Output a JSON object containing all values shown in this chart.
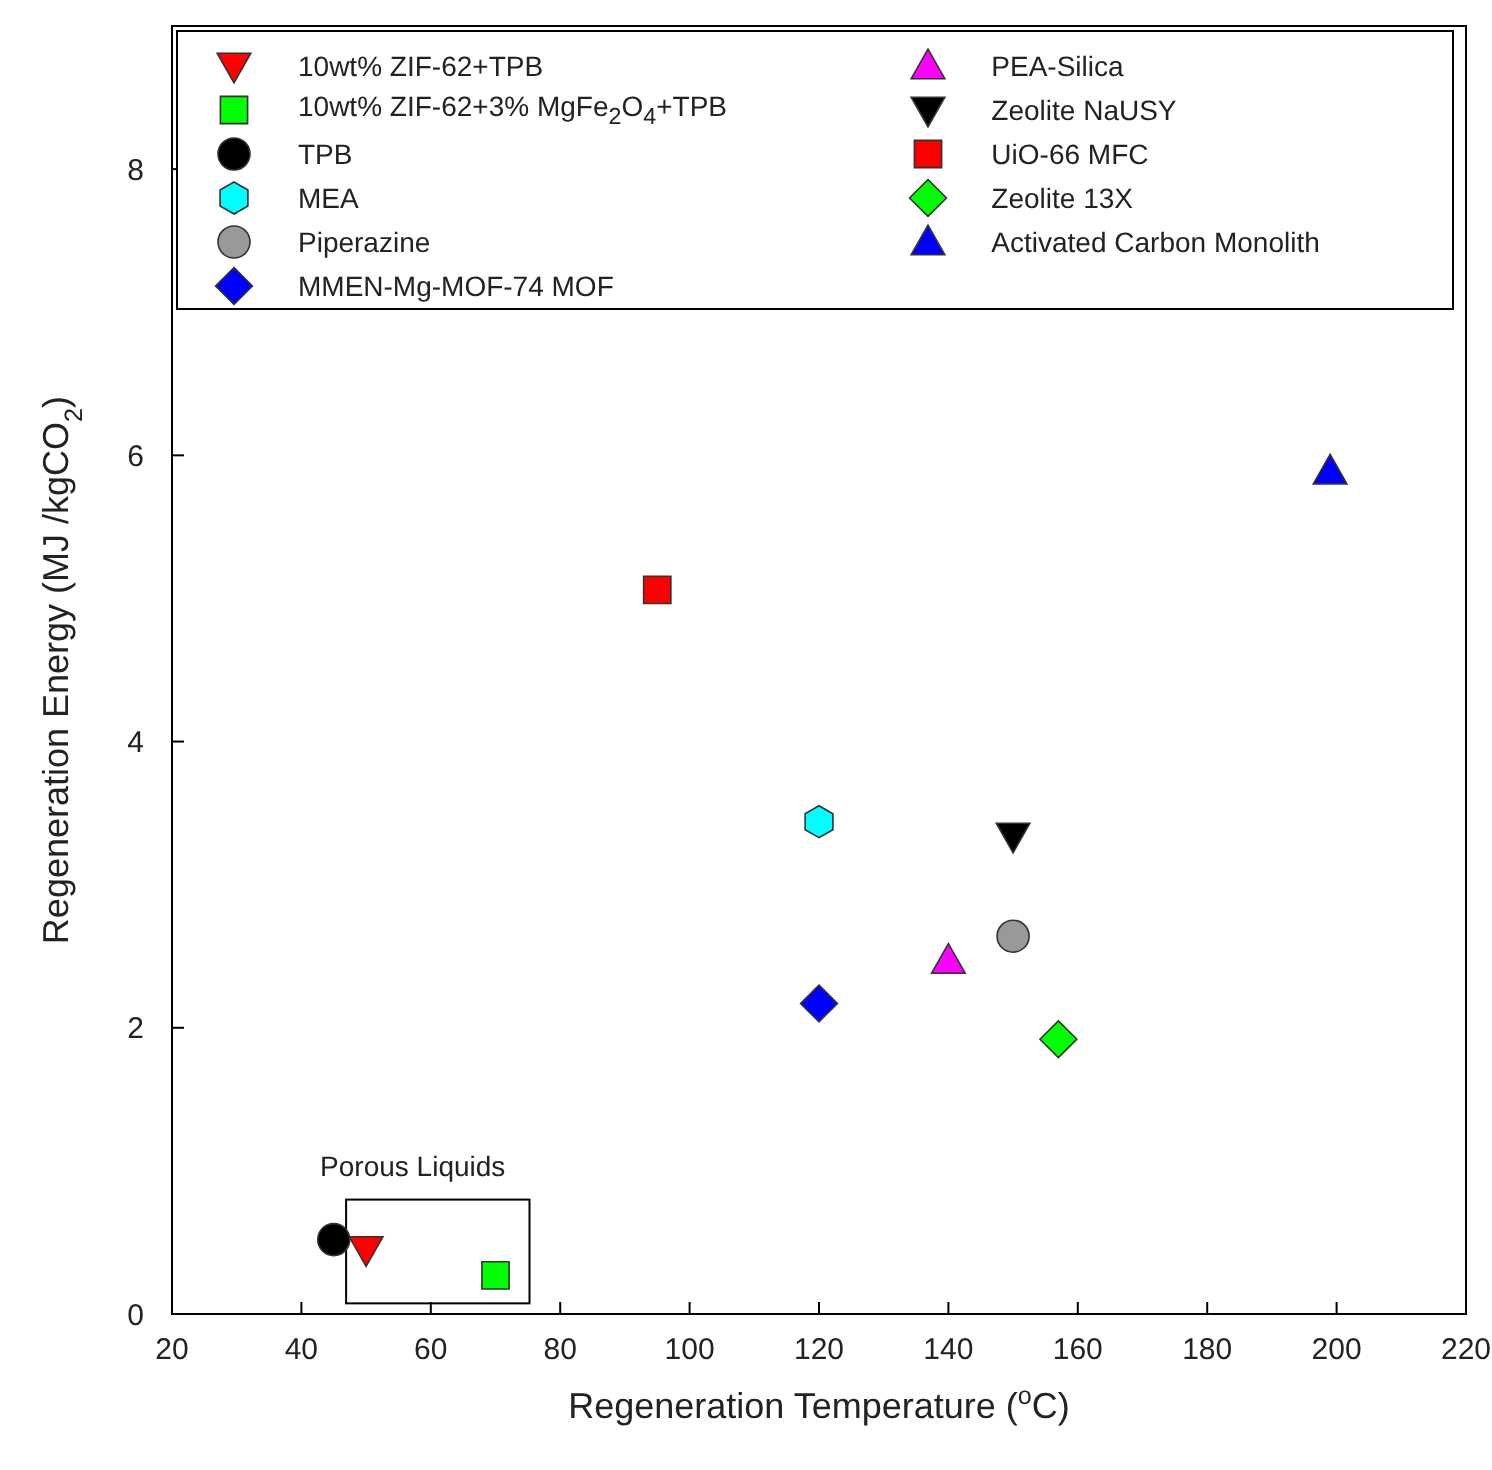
{
  "chart_data": {
    "type": "scatter",
    "xlabel": "Regeneration Temperature ($^{o}$C)",
    "ylabel": "Regeneration Energy (MJ /kgCO$_{2}$)",
    "xlim": [
      20,
      220
    ],
    "xticks": [
      20,
      40,
      60,
      80,
      100,
      120,
      140,
      160,
      180,
      200,
      220
    ],
    "ylim": [
      0,
      9
    ],
    "yticks": [
      0,
      2,
      4,
      6,
      8
    ],
    "grid": false,
    "legend": "top",
    "annotations": [
      "Porous Liquids"
    ],
    "series": [
      {
        "name": "10wt% ZIF-62+TPB",
        "color": "#ff0000",
        "marker": "triangle-down",
        "x": [
          50
        ],
        "values": [
          0.45
        ]
      },
      {
        "name": "10wt% ZIF-62+3% MgFe$_{2}$O$_{4}$+TPB",
        "color": "#00ff00",
        "marker": "square",
        "x": [
          70
        ],
        "values": [
          0.27
        ]
      },
      {
        "name": "TPB",
        "color": "#000000",
        "marker": "circle",
        "x": [
          45
        ],
        "values": [
          0.52
        ]
      },
      {
        "name": "MEA",
        "color": "#00ffff",
        "x": [
          120
        ],
        "values": [
          3.44
        ]
      },
      {
        "name": "Piperazine",
        "color": "#999999",
        "marker": "circle",
        "x": [
          150
        ],
        "values": [
          2.64
        ]
      },
      {
        "name": "MMEN-Mg-MOF-74 MOF",
        "color": "#0000ff",
        "marker": "diamond",
        "x": [
          120
        ],
        "values": [
          2.17
        ]
      },
      {
        "name": "PEA-Silica",
        "color": "#ff00ff",
        "marker": "triangle",
        "x": [
          140
        ],
        "values": [
          2.47
        ]
      },
      {
        "name": "Zeolite NaUSY",
        "color": "#000000",
        "marker": "triangle-down",
        "x": [
          150
        ],
        "values": [
          3.34
        ]
      },
      {
        "name": "UiO-66 MFC",
        "color": "#ff0000",
        "marker": "square",
        "x": [
          95
        ],
        "values": [
          5.06
        ]
      },
      {
        "name": "Zeolite 13X",
        "color": "#00ff00",
        "marker": "diamond",
        "x": [
          157
        ],
        "values": [
          1.92
        ]
      },
      {
        "name": "Activated Carbon Monolith",
        "color": "#0000ff",
        "marker": "triangle",
        "x": [
          199
        ],
        "values": [
          5.89
        ]
      }
    ]
  }
}
